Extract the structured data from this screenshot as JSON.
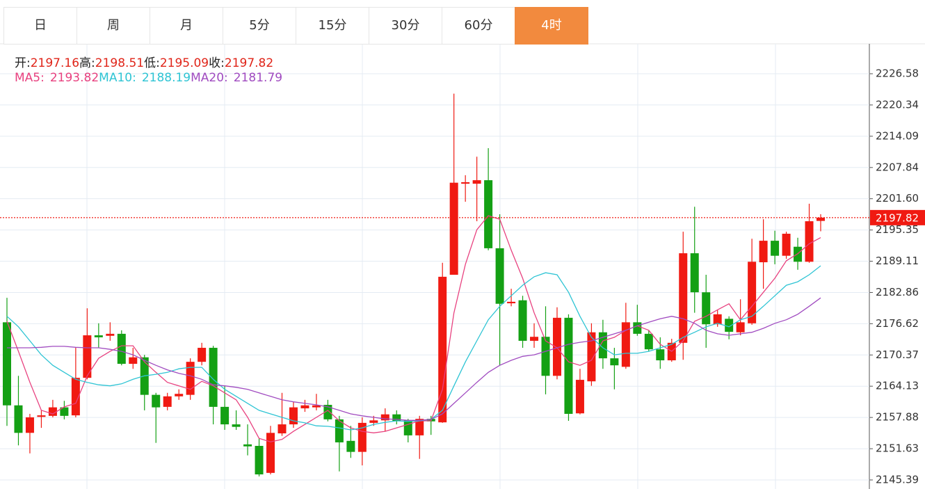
{
  "chart_data": {
    "type": "candlestick",
    "tabs": [
      "日",
      "周",
      "月",
      "5分",
      "15分",
      "30分",
      "60分",
      "4时"
    ],
    "active_tab": 7,
    "ohlc_labels": [
      "开:",
      "高:",
      "低:",
      "收:"
    ],
    "up_color": "#f01a12",
    "down_color": "#14a014",
    "open": [
      2176.9,
      2160.3,
      2154.8,
      2158.0,
      2158.2,
      2159.9,
      2158.3,
      2165.8,
      2174.3,
      2174.2,
      2174.6,
      2168.6,
      2169.9,
      2162.4,
      2160.0,
      2162.1,
      2162.4,
      2169.0,
      2171.8,
      2160.0,
      2156.5,
      2152.5,
      2152.2,
      2146.8,
      2154.7,
      2156.5,
      2159.7,
      2159.9,
      2160.4,
      2157.5,
      2153.2,
      2151.0,
      2156.8,
      2157.3,
      2158.5,
      2157.3,
      2154.3,
      2157.6,
      2156.9,
      2186.4,
      2204.6,
      2204.6,
      2205.3,
      2191.7,
      2180.7,
      2181.3,
      2173.2,
      2174.0,
      2166.2,
      2177.8,
      2158.7,
      2165.1,
      2174.9,
      2169.7,
      2168.0,
      2176.9,
      2174.6,
      2171.5,
      2169.3,
      2172.8,
      2190.7,
      2182.9,
      2176.5,
      2177.6,
      2174.9,
      2176.7,
      2188.9,
      2193.2,
      2190.2,
      2192.0,
      2189.0,
      2197.16
    ],
    "high": [
      2181.8,
      2166.2,
      2158.6,
      2159.3,
      2161.4,
      2161.2,
      2171.8,
      2179.7,
      2176.7,
      2176.9,
      2175.3,
      2171.8,
      2170.4,
      2162.8,
      2162.8,
      2163.5,
      2169.7,
      2172.8,
      2172.2,
      2164.2,
      2159.3,
      2156.5,
      2153.7,
      2156.2,
      2162.8,
      2161.0,
      2161.4,
      2162.6,
      2161.4,
      2158.2,
      2156.2,
      2157.9,
      2158.2,
      2159.7,
      2159.3,
      2157.6,
      2158.2,
      2158.2,
      2188.8,
      2222.6,
      2206.3,
      2210.0,
      2211.7,
      2198.5,
      2183.6,
      2182.2,
      2176.7,
      2180.1,
      2179.9,
      2178.5,
      2167.6,
      2176.7,
      2177.4,
      2171.8,
      2180.8,
      2180.4,
      2175.3,
      2173.9,
      2173.6,
      2195.0,
      2200.0,
      2186.4,
      2179.4,
      2178.1,
      2181.5,
      2193.6,
      2197.5,
      2195.2,
      2195.0,
      2193.8,
      2200.6,
      2198.51
    ],
    "low": [
      2156.2,
      2152.3,
      2150.7,
      2155.8,
      2157.9,
      2157.5,
      2157.9,
      2165.5,
      2171.8,
      2173.2,
      2168.3,
      2167.6,
      2159.3,
      2152.8,
      2159.3,
      2161.4,
      2161.4,
      2168.3,
      2156.5,
      2155.4,
      2155.4,
      2150.3,
      2146.1,
      2146.5,
      2154.2,
      2155.8,
      2159.0,
      2159.3,
      2157.1,
      2147.1,
      2149.8,
      2148.3,
      2156.2,
      2155.1,
      2156.5,
      2152.9,
      2149.6,
      2154.4,
      2156.8,
      2186.4,
      2201.0,
      2197.1,
      2191.3,
      2168.3,
      2180.1,
      2171.8,
      2171.8,
      2162.5,
      2165.5,
      2157.2,
      2158.5,
      2164.2,
      2167.6,
      2163.5,
      2167.6,
      2174.2,
      2171.1,
      2167.6,
      2169.0,
      2169.4,
      2178.8,
      2171.8,
      2176.0,
      2173.5,
      2174.3,
      2176.4,
      2183.6,
      2188.5,
      2189.6,
      2187.4,
      2188.8,
      2195.09
    ],
    "close": [
      2160.3,
      2154.8,
      2157.9,
      2158.3,
      2159.9,
      2158.2,
      2165.8,
      2174.3,
      2173.9,
      2174.6,
      2168.6,
      2169.9,
      2162.4,
      2159.9,
      2162.1,
      2162.6,
      2169.0,
      2171.8,
      2160.0,
      2156.5,
      2156.0,
      2152.1,
      2146.5,
      2154.8,
      2156.5,
      2159.9,
      2160.3,
      2160.3,
      2157.5,
      2152.9,
      2151.0,
      2156.8,
      2157.3,
      2158.5,
      2157.2,
      2154.3,
      2157.6,
      2157.1,
      2186.0,
      2204.8,
      2204.9,
      2205.3,
      2191.7,
      2180.6,
      2181.0,
      2173.2,
      2174.0,
      2166.2,
      2177.8,
      2158.6,
      2165.4,
      2174.9,
      2169.7,
      2168.3,
      2176.9,
      2174.6,
      2171.5,
      2169.3,
      2172.8,
      2190.7,
      2182.9,
      2176.5,
      2178.5,
      2175.0,
      2176.9,
      2189.0,
      2193.2,
      2190.2,
      2194.6,
      2189.0,
      2197.1,
      2197.82
    ],
    "ma_series": [
      {
        "name": "MA5:",
        "color": "#e8417f",
        "values": [
          2177.1,
          2171.1,
          2164.9,
          2159.3,
          2158.6,
          2160.0,
          2160.7,
          2166.2,
          2169.7,
          2171.1,
          2172.2,
          2172.2,
          2169.0,
          2166.9,
          2164.9,
          2164.2,
          2163.5,
          2165.1,
          2164.2,
          2162.8,
          2161.4,
          2157.9,
          2153.7,
          2153.0,
          2153.5,
          2155.1,
          2156.5,
          2157.9,
          2159.3,
          2157.2,
          2155.8,
          2155.1,
          2154.8,
          2155.1,
          2155.8,
          2156.5,
          2157.2,
          2157.2,
          2163.5,
          2178.8,
          2188.5,
          2195.4,
          2198.2,
          2197.5,
          2191.3,
          2185.7,
          2178.8,
          2173.2,
          2171.8,
          2169.0,
          2168.3,
          2169.3,
          2173.2,
          2173.9,
          2175.3,
          2176.2,
          2175.3,
          2172.5,
          2171.1,
          2173.2,
          2177.1,
          2178.1,
          2179.4,
          2180.6,
          2177.4,
          2180.1,
          2182.9,
          2185.7,
          2189.2,
          2190.6,
          2192.6,
          2193.82
        ]
      },
      {
        "name": "MA10:",
        "color": "#2ec4d4",
        "values": [
          2178.1,
          2176.0,
          2173.2,
          2170.4,
          2168.3,
          2166.9,
          2165.5,
          2164.9,
          2164.4,
          2164.2,
          2164.6,
          2165.5,
          2166.2,
          2166.5,
          2166.9,
          2167.6,
          2167.9,
          2167.9,
          2165.5,
          2163.5,
          2162.1,
          2160.7,
          2159.3,
          2158.6,
          2157.9,
          2157.2,
          2156.8,
          2156.2,
          2156.1,
          2155.8,
          2155.4,
          2155.8,
          2156.5,
          2156.9,
          2157.2,
          2157.1,
          2157.2,
          2157.5,
          2159.3,
          2164.2,
          2169.0,
          2173.2,
          2177.4,
          2180.1,
          2182.2,
          2184.3,
          2186.0,
          2186.8,
          2186.4,
          2182.9,
          2178.1,
          2173.9,
          2171.8,
          2170.4,
          2170.7,
          2170.7,
          2171.1,
          2171.8,
          2172.5,
          2173.9,
          2174.9,
          2176.0,
          2176.7,
          2176.0,
          2177.4,
          2178.1,
          2180.1,
          2182.2,
          2184.3,
          2185.0,
          2186.4,
          2188.19
        ]
      },
      {
        "name": "MA20:",
        "color": "#a04bc0",
        "values": [
          2171.8,
          2171.8,
          2171.8,
          2171.9,
          2172.1,
          2172.1,
          2171.9,
          2171.8,
          2171.8,
          2171.5,
          2171.1,
          2170.4,
          2169.3,
          2168.3,
          2167.4,
          2166.7,
          2166.2,
          2165.5,
          2164.4,
          2164.2,
          2163.9,
          2163.5,
          2162.8,
          2162.1,
          2161.4,
          2161.0,
          2160.7,
          2160.4,
          2160.0,
          2159.3,
          2158.6,
          2158.2,
          2157.9,
          2157.6,
          2157.5,
          2157.3,
          2157.3,
          2157.5,
          2158.6,
          2160.7,
          2162.8,
          2164.9,
          2166.9,
          2168.3,
          2169.3,
          2170.1,
          2170.4,
          2171.1,
          2171.8,
          2172.5,
          2172.9,
          2173.2,
          2173.9,
          2174.6,
          2175.3,
          2176.2,
          2176.9,
          2177.6,
          2178.1,
          2177.6,
          2176.7,
          2175.3,
          2174.6,
          2174.3,
          2174.6,
          2174.9,
          2175.7,
          2176.7,
          2177.4,
          2178.5,
          2180.1,
          2181.79
        ]
      }
    ],
    "ylim": [
      2143.58,
      2232.56
    ],
    "yticks": [
      2226.58,
      2220.34,
      2214.09,
      2207.84,
      {
        "value": 2201.6,
        "label": "2201.60"
      },
      2195.35,
      2189.11,
      2182.86,
      2176.62,
      2170.37,
      2164.13,
      2157.88,
      2151.63,
      2145.39
    ],
    "grid": true
  }
}
